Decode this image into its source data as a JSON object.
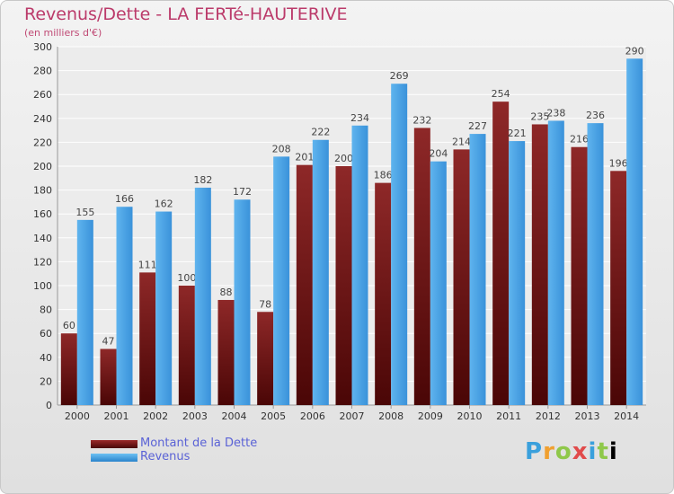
{
  "chart_data": {
    "type": "bar",
    "title": "Revenus/Dette - LA FERTé-HAUTERIVE",
    "subtitle": "(en milliers d'€)",
    "categories": [
      "2000",
      "2001",
      "2002",
      "2003",
      "2004",
      "2005",
      "2006",
      "2007",
      "2008",
      "2009",
      "2010",
      "2011",
      "2012",
      "2013",
      "2014"
    ],
    "series": [
      {
        "name": "Montant de la Dette",
        "color": "#7a1c1c",
        "values": [
          60,
          47,
          111,
          100,
          88,
          78,
          201,
          200,
          186,
          232,
          214,
          254,
          235,
          216,
          196
        ]
      },
      {
        "name": "Revenus",
        "color": "#4aa3e6",
        "values": [
          155,
          166,
          162,
          182,
          172,
          208,
          222,
          234,
          269,
          204,
          227,
          221,
          238,
          236,
          290
        ]
      }
    ],
    "ylim": [
      0,
      300
    ],
    "ytick_step": 20,
    "grid": true,
    "legend_position": "bottom-left",
    "xlabel": "",
    "ylabel": ""
  },
  "logo_text": "Proxiti"
}
